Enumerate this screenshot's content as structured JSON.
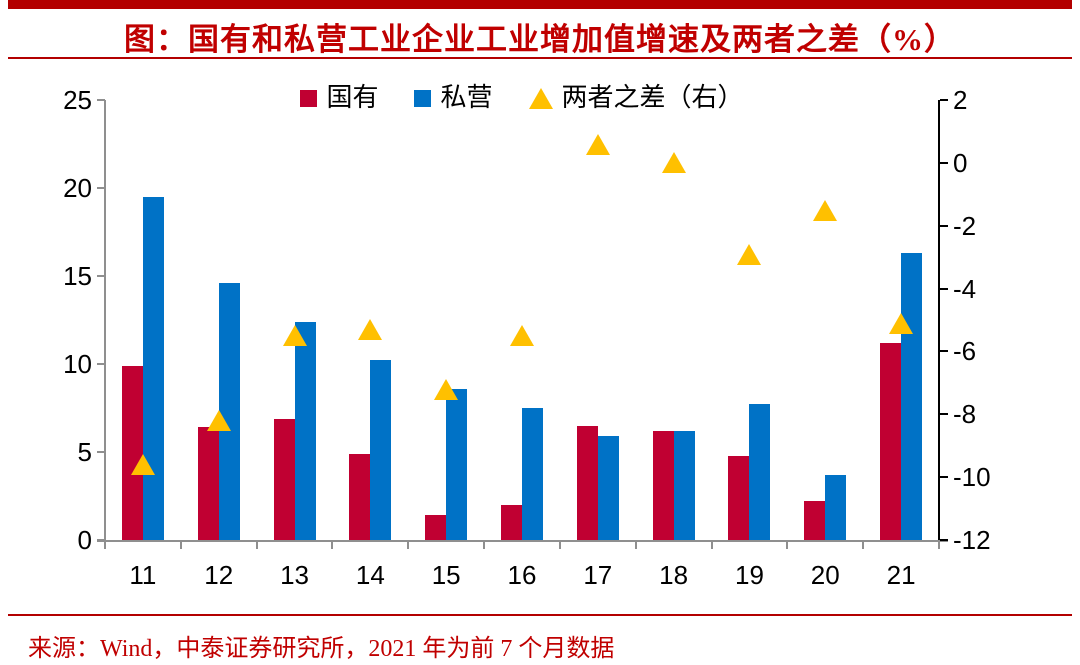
{
  "header": {
    "title": "图：国有和私营工业企业工业增加值增速及两者之差（%）"
  },
  "legend": {
    "items": [
      {
        "label": "国有",
        "marker": "square",
        "color": "#C00032"
      },
      {
        "label": "私营",
        "marker": "square",
        "color": "#0072C6"
      },
      {
        "label": "两者之差（右）",
        "marker": "triangle",
        "color": "#FFC000"
      }
    ]
  },
  "colors": {
    "accent_red": "#B30000",
    "title_red": "#C00000",
    "bar_state": "#C00032",
    "bar_private": "#0072C6",
    "marker_diff": "#FFC000",
    "axis_gray": "#8F8F8F",
    "axis_black": "#000000"
  },
  "chart_data": {
    "type": "bar",
    "subtype": "grouped-bars-with-triangle-scatter",
    "title": "图：国有和私营工业企业工业增加值增速及两者之差（%）",
    "categories": [
      "11",
      "12",
      "13",
      "14",
      "15",
      "16",
      "17",
      "18",
      "19",
      "20",
      "21"
    ],
    "series": [
      {
        "name": "国有",
        "type": "bar",
        "axis": "left",
        "color": "#C00032",
        "values": [
          9.9,
          6.4,
          6.9,
          4.9,
          1.4,
          2.0,
          6.5,
          6.2,
          4.8,
          2.2,
          11.2
        ]
      },
      {
        "name": "私营",
        "type": "bar",
        "axis": "left",
        "color": "#0072C6",
        "values": [
          19.5,
          14.6,
          12.4,
          10.2,
          8.6,
          7.5,
          5.9,
          6.2,
          7.7,
          3.7,
          16.3
        ]
      },
      {
        "name": "两者之差（右）",
        "type": "scatter-triangle",
        "axis": "right",
        "color": "#FFC000",
        "values": [
          -9.6,
          -8.2,
          -5.5,
          -5.3,
          -7.2,
          -5.5,
          0.6,
          0.0,
          -2.9,
          -1.5,
          -5.1
        ]
      }
    ],
    "left_axis": {
      "min": 0,
      "max": 25,
      "ticks": [
        0,
        5,
        10,
        15,
        20,
        25
      ]
    },
    "right_axis": {
      "min": -12,
      "max": 2,
      "ticks": [
        -12,
        -10,
        -8,
        -6,
        -4,
        -2,
        0,
        2
      ]
    },
    "grid": false,
    "legend_position": "top-center"
  },
  "footer": {
    "source": "来源：Wind，中泰证券研究所，2021 年为前 7 个月数据"
  }
}
